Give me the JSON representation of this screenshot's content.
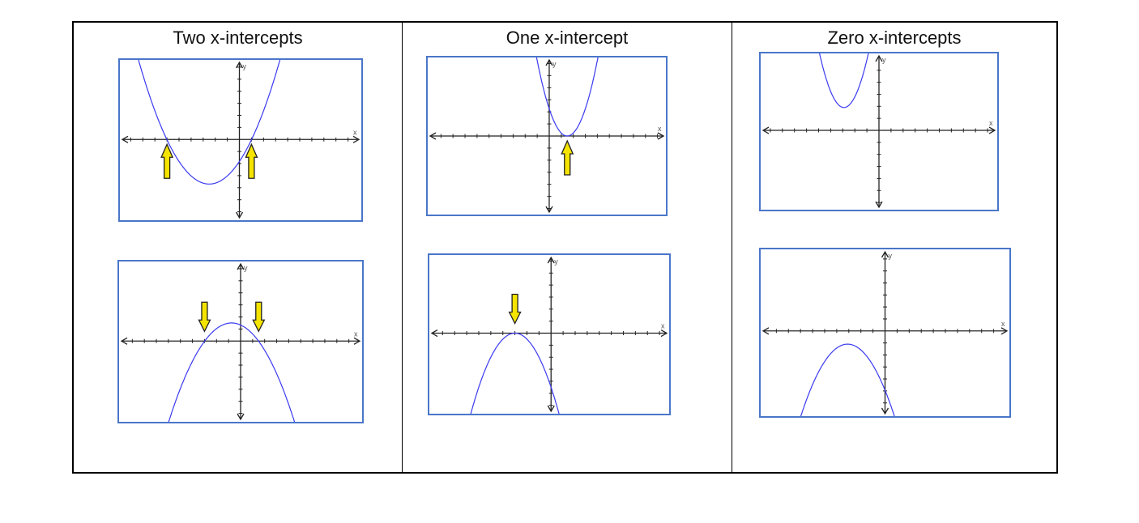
{
  "columns": [
    {
      "header": "Two x-intercepts",
      "graphs": [
        "g1",
        "g2"
      ]
    },
    {
      "header": "One x-intercept",
      "graphs": [
        "g3",
        "g4"
      ]
    },
    {
      "header": "Zero x-intercepts",
      "graphs": [
        "g5",
        "g6"
      ]
    }
  ],
  "colors": {
    "curve": "#3a3af0",
    "border": "#4a76c9",
    "arrow_fill": "#f5e400",
    "axis": "#222222"
  },
  "chart_data": [
    {
      "id": "g1",
      "type": "line",
      "function": "y=0.3(x+6)(x-1)",
      "a": 0.3,
      "h": -2.5,
      "k": -3.7,
      "xlim": [
        -9.9,
        10.1
      ],
      "ylim": [
        -6.7,
        6.6
      ],
      "xlabel": "x",
      "ylabel": "y",
      "arrows": [
        {
          "x": -6,
          "dir": "up"
        },
        {
          "x": 1,
          "dir": "up"
        }
      ]
    },
    {
      "id": "g2",
      "type": "line",
      "function": "y=-0.3(x+3)(x-1.5)",
      "a": -0.3,
      "h": -0.75,
      "k": 1.5,
      "xlim": [
        -10.1,
        10.1
      ],
      "ylim": [
        -6.7,
        6.6
      ],
      "xlabel": "x",
      "ylabel": "y",
      "arrows": [
        {
          "x": -3,
          "dir": "down"
        },
        {
          "x": 1.5,
          "dir": "down"
        }
      ]
    },
    {
      "id": "g3",
      "type": "line",
      "function": "y=(x-1.5)^2",
      "a": 1,
      "h": 1.5,
      "k": 0,
      "xlim": [
        -10.1,
        9.7
      ],
      "ylim": [
        -6.5,
        6.5
      ],
      "xlabel": "x",
      "ylabel": "y",
      "arrows": [
        {
          "x": 1.5,
          "dir": "up"
        }
      ]
    },
    {
      "id": "g4",
      "type": "line",
      "function": "y=-0.5(x+3)^2",
      "a": -0.5,
      "h": -3,
      "k": 0,
      "xlim": [
        -10.1,
        9.8
      ],
      "ylim": [
        -6.7,
        6.5
      ],
      "xlabel": "x",
      "ylabel": "y",
      "arrows": [
        {
          "x": -3,
          "dir": "down"
        }
      ]
    },
    {
      "id": "g5",
      "type": "line",
      "function": "y=1.1(x+2.9)^2+1.9",
      "a": 1.1,
      "h": -2.9,
      "k": 1.9,
      "xlim": [
        -9.8,
        9.8
      ],
      "ylim": [
        -6.6,
        6.4
      ],
      "xlabel": "x",
      "ylabel": "y",
      "arrows": []
    },
    {
      "id": "g6",
      "type": "line",
      "function": "y=-0.4(x+3.1)^2-1.1",
      "a": -0.4,
      "h": -3.1,
      "k": -1.1,
      "xlim": [
        -10.3,
        10.3
      ],
      "ylim": [
        -7.1,
        6.8
      ],
      "xlabel": "x",
      "ylabel": "y",
      "arrows": []
    }
  ]
}
